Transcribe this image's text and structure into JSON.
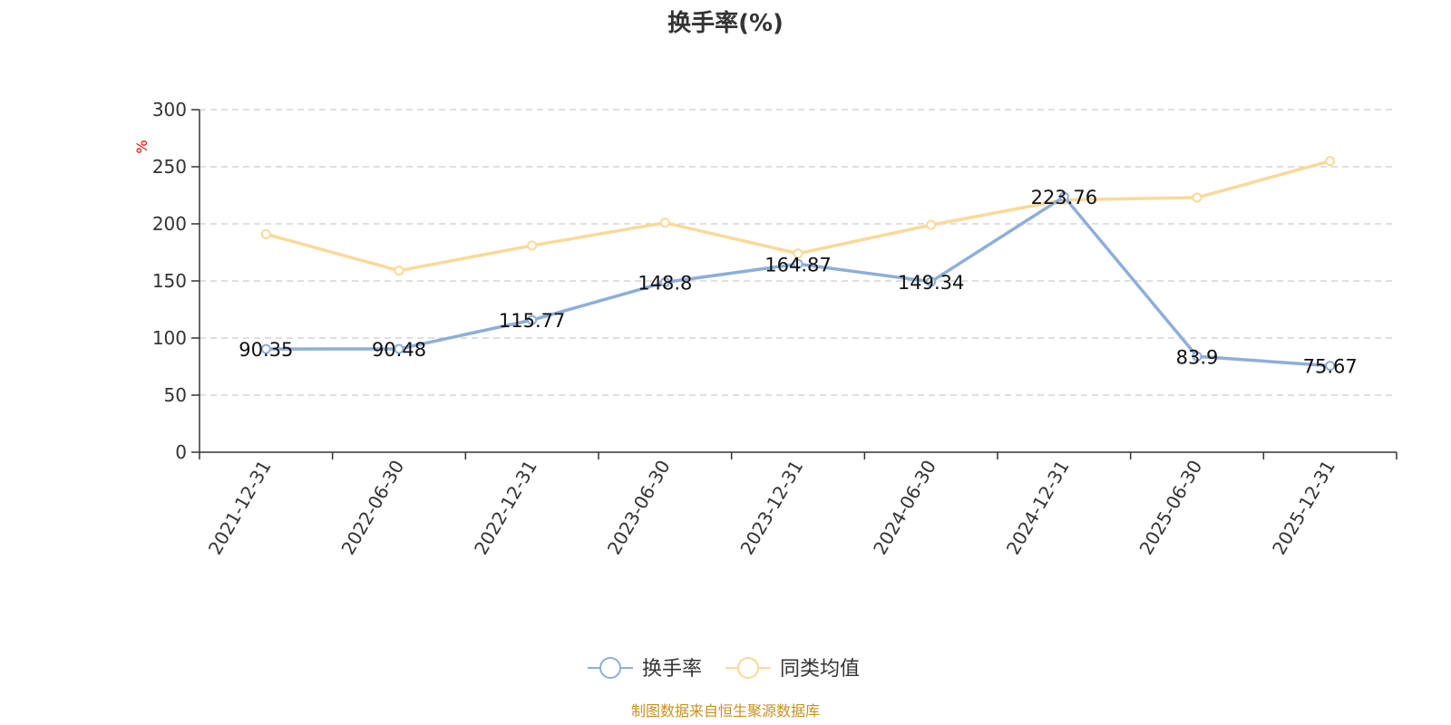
{
  "chart_data": {
    "type": "line",
    "title": "换手率(%)",
    "ylabel": "%",
    "xlabel": "",
    "categories": [
      "2021-12-31",
      "2022-06-30",
      "2022-12-31",
      "2023-06-30",
      "2023-12-31",
      "2024-06-30",
      "2024-12-31",
      "2025-06-30",
      "2025-12-31"
    ],
    "ylim": [
      0,
      300
    ],
    "yticks": [
      0,
      50,
      100,
      150,
      200,
      250,
      300
    ],
    "grid": true,
    "legend_position": "bottom-center",
    "series": [
      {
        "name": "换手率",
        "color": "#8eaed9",
        "values": [
          90.35,
          90.48,
          115.77,
          148.8,
          164.87,
          149.34,
          223.76,
          83.9,
          75.67
        ],
        "labels": [
          "90.35",
          "90.48",
          "115.77",
          "148.8",
          "164.87",
          "149.34",
          "223.76",
          "83.9",
          "75.67"
        ]
      },
      {
        "name": "同类均值",
        "color": "#fad999",
        "values": [
          191,
          159,
          181,
          201,
          174,
          199,
          221,
          223,
          255
        ]
      }
    ],
    "source": "制图数据来自恒生聚源数据库"
  }
}
